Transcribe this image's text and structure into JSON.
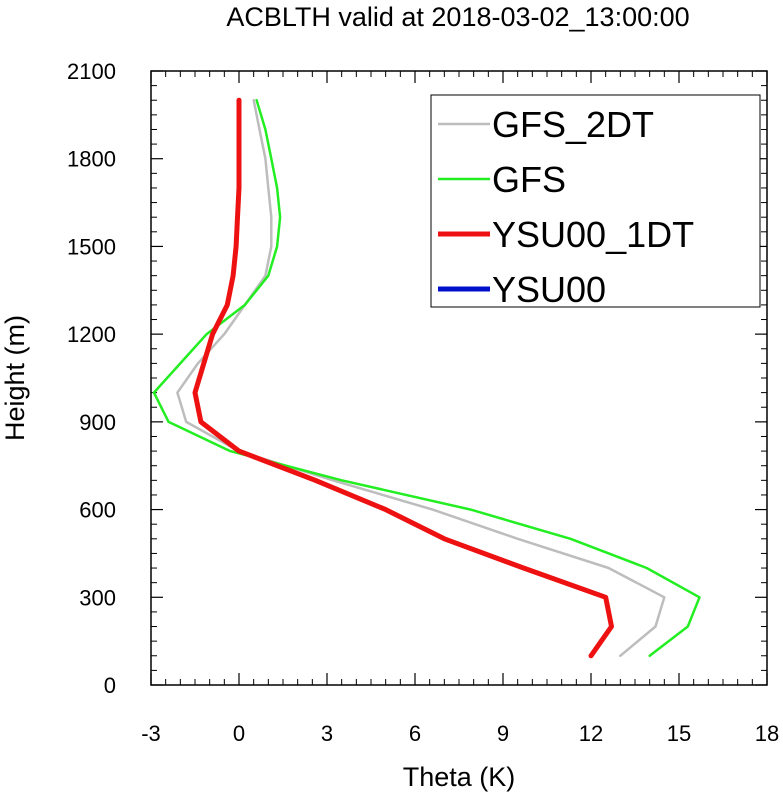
{
  "chart_data": {
    "type": "line",
    "title": "ACBLTH valid at 2018-03-02_13:00:00",
    "xlabel": "Theta (K)",
    "ylabel": "Height (m)",
    "xlim": [
      -3,
      18
    ],
    "ylim": [
      0,
      2100
    ],
    "xticks": [
      "-3",
      "0",
      "3",
      "6",
      "9",
      "12",
      "15",
      "18"
    ],
    "yticks": [
      "0",
      "300",
      "600",
      "900",
      "1200",
      "1500",
      "1800",
      "2100"
    ],
    "grid": false,
    "legend_position": "top-right",
    "series": [
      {
        "name": "GFS_2DT",
        "color": "#bdbdbd",
        "points": [
          [
            13.0,
            100
          ],
          [
            14.2,
            200
          ],
          [
            14.5,
            300
          ],
          [
            12.6,
            400
          ],
          [
            9.5,
            500
          ],
          [
            6.6,
            600
          ],
          [
            3.2,
            700
          ],
          [
            0.0,
            800
          ],
          [
            -1.8,
            900
          ],
          [
            -2.1,
            1000
          ],
          [
            -1.4,
            1100
          ],
          [
            -0.5,
            1200
          ],
          [
            0.2,
            1300
          ],
          [
            0.9,
            1400
          ],
          [
            1.1,
            1500
          ],
          [
            1.1,
            1600
          ],
          [
            1.0,
            1700
          ],
          [
            0.9,
            1800
          ],
          [
            0.7,
            1900
          ],
          [
            0.5,
            2000
          ]
        ],
        "width": 2.5
      },
      {
        "name": "GFS",
        "color": "#22ee22",
        "points": [
          [
            14.0,
            100
          ],
          [
            15.3,
            200
          ],
          [
            15.7,
            300
          ],
          [
            13.9,
            400
          ],
          [
            11.3,
            500
          ],
          [
            7.9,
            600
          ],
          [
            3.5,
            700
          ],
          [
            -0.3,
            800
          ],
          [
            -2.4,
            900
          ],
          [
            -2.9,
            1000
          ],
          [
            -2.0,
            1100
          ],
          [
            -1.1,
            1200
          ],
          [
            0.2,
            1300
          ],
          [
            1.0,
            1400
          ],
          [
            1.3,
            1500
          ],
          [
            1.4,
            1600
          ],
          [
            1.3,
            1700
          ],
          [
            1.1,
            1800
          ],
          [
            0.9,
            1900
          ],
          [
            0.6,
            2000
          ]
        ],
        "width": 2.5
      },
      {
        "name": "YSU00_1DT",
        "color": "#ee1111",
        "points": [
          [
            12.0,
            100
          ],
          [
            12.7,
            200
          ],
          [
            12.5,
            300
          ],
          [
            9.7,
            400
          ],
          [
            7.0,
            500
          ],
          [
            5.0,
            600
          ],
          [
            2.6,
            700
          ],
          [
            0.0,
            800
          ],
          [
            -1.3,
            900
          ],
          [
            -1.5,
            1000
          ],
          [
            -1.2,
            1100
          ],
          [
            -0.9,
            1200
          ],
          [
            -0.4,
            1300
          ],
          [
            -0.2,
            1400
          ],
          [
            -0.1,
            1500
          ],
          [
            -0.05,
            1600
          ],
          [
            0.0,
            1700
          ],
          [
            0.0,
            1800
          ],
          [
            0.0,
            1900
          ],
          [
            0.0,
            2000
          ]
        ],
        "width": 5
      },
      {
        "name": "YSU00",
        "color": "#0011cc",
        "points": [],
        "width": 4
      }
    ]
  }
}
